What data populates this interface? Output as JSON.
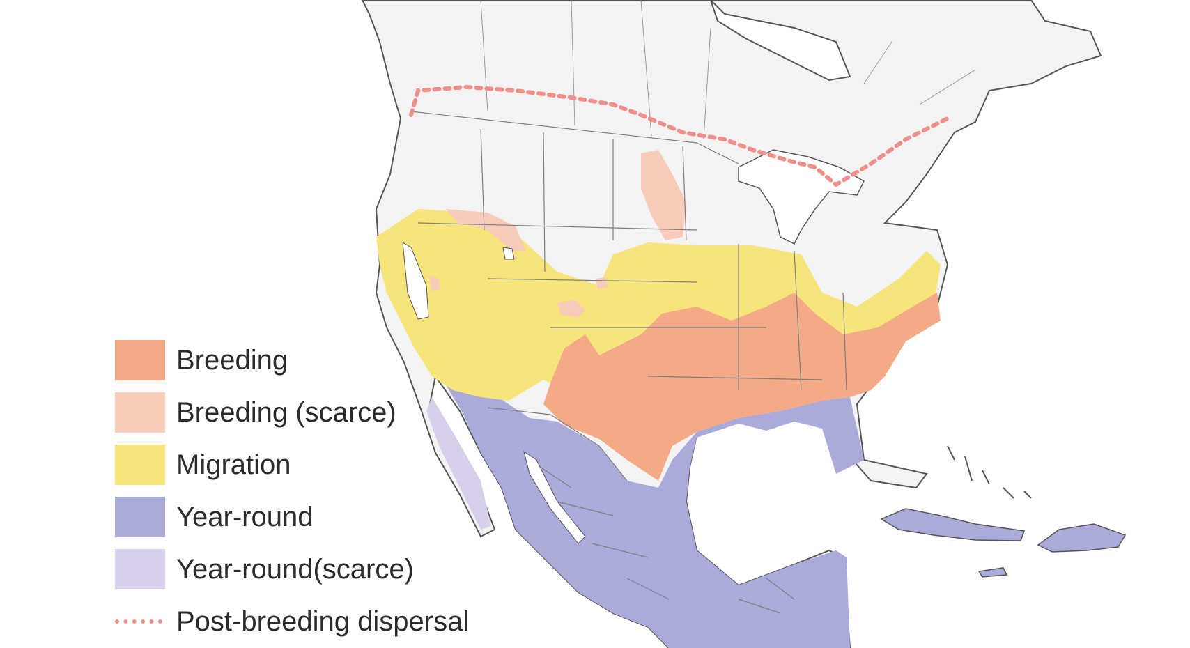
{
  "colors": {
    "land": "#f3f3f3",
    "border": "#7f7f7f",
    "breeding": "#f4aa86",
    "breeding_scarce": "#f9cbbb",
    "migration": "#f7e47a",
    "year_round": "#aaaadb",
    "year_round_scarce": "#d8d0ea",
    "post_breeding_dispersal": "#f08f8a"
  },
  "legend": [
    {
      "key": "breeding",
      "label": "Breeding"
    },
    {
      "key": "breeding_scarce",
      "label": "Breeding (scarce)"
    },
    {
      "key": "migration",
      "label": "Migration"
    },
    {
      "key": "year_round",
      "label": "Year-round"
    },
    {
      "key": "year_round_scarce",
      "label": "Year-round(scarce)"
    },
    {
      "key": "post_breeding_dispersal",
      "label": "Post-breeding dispersal"
    }
  ]
}
